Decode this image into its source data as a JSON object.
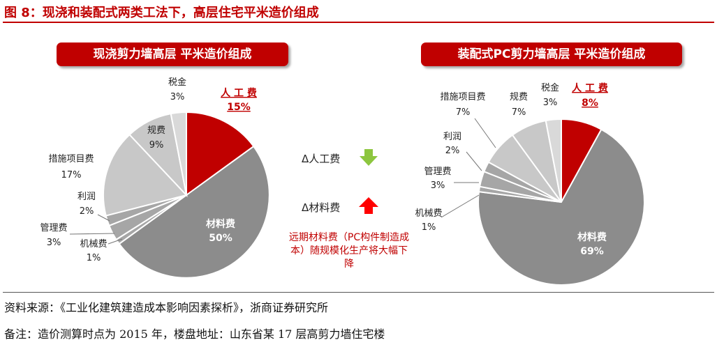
{
  "figure_title": "图 8：现浇和装配式两类工法下，高层住宅平米造价组成",
  "left_title": "现浇剪力墙高层  平米造价组成",
  "right_title": "装配式PC剪力墙高层  平米造价组成",
  "middle": {
    "labor_down": "Δ人工费",
    "material_up": "Δ材料费",
    "note": "远期材料费（PC构件制造成本）随规模化生产将大幅下降"
  },
  "footer": {
    "source": "资料来源：《工业化建筑建造成本影响因素探析》，浙商证券研究所",
    "note": "备注：造价测算时点为 2015 年，楼盘地址：山东省某 17 层高剪力墙住宅楼"
  },
  "colors": {
    "accent": "#c00000",
    "arrow_down": "#8dc63f",
    "arrow_up": "#ff0000",
    "material": "#8c8c8c",
    "light_grey": "#c8c8c8"
  },
  "chart_data": [
    {
      "type": "pie",
      "title": "现浇剪力墙高层  平米造价组成",
      "slices": [
        {
          "label": "人工费",
          "value": 15,
          "display": "15%",
          "color": "#c00000"
        },
        {
          "label": "材料费",
          "value": 50,
          "display": "50%",
          "color": "#8c8c8c"
        },
        {
          "label": "机械费",
          "value": 1,
          "display": "1%",
          "color": "#a6a6a6"
        },
        {
          "label": "管理费",
          "value": 3,
          "display": "3%",
          "color": "#a6a6a6"
        },
        {
          "label": "利润",
          "value": 2,
          "display": "2%",
          "color": "#a6a6a6"
        },
        {
          "label": "措施项目费",
          "value": 17,
          "display": "17%",
          "color": "#c8c8c8"
        },
        {
          "label": "规费",
          "value": 9,
          "display": "9%",
          "color": "#c8c8c8"
        },
        {
          "label": "税金",
          "value": 3,
          "display": "3%",
          "color": "#d9d9d9"
        }
      ]
    },
    {
      "type": "pie",
      "title": "装配式PC剪力墙高层  平米造价组成",
      "slices": [
        {
          "label": "人工费",
          "value": 8,
          "display": "8%",
          "color": "#c00000"
        },
        {
          "label": "材料费",
          "value": 69,
          "display": "69%",
          "color": "#8c8c8c"
        },
        {
          "label": "机械费",
          "value": 1,
          "display": "1%",
          "color": "#a6a6a6"
        },
        {
          "label": "管理费",
          "value": 3,
          "display": "3%",
          "color": "#a6a6a6"
        },
        {
          "label": "利润",
          "value": 2,
          "display": "2%",
          "color": "#a6a6a6"
        },
        {
          "label": "措施项目费",
          "value": 7,
          "display": "7%",
          "color": "#c8c8c8"
        },
        {
          "label": "规费",
          "value": 7,
          "display": "7%",
          "color": "#c8c8c8"
        },
        {
          "label": "税金",
          "value": 3,
          "display": "3%",
          "color": "#d9d9d9"
        }
      ]
    }
  ]
}
